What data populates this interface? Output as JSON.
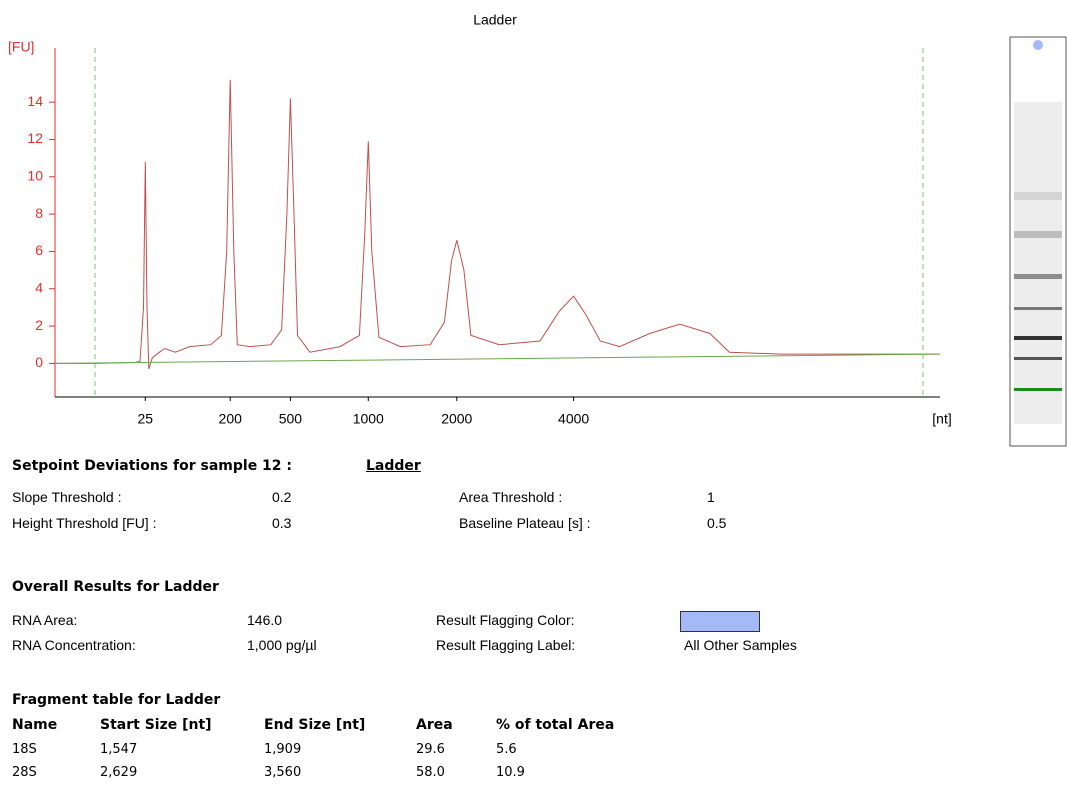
{
  "chart_data": {
    "type": "line",
    "title": "Ladder",
    "y_label": "[FU]",
    "x_label": "[nt]",
    "xlim": [
      19,
      69
    ],
    "ylim": [
      -1.8,
      16.9
    ],
    "yticks": [
      0,
      2,
      4,
      6,
      8,
      10,
      12,
      14
    ],
    "xticks": [
      {
        "value": 24.1,
        "label": "25"
      },
      {
        "value": 28.9,
        "label": "200"
      },
      {
        "value": 32.3,
        "label": "500"
      },
      {
        "value": 36.7,
        "label": "1000"
      },
      {
        "value": 41.7,
        "label": "2000"
      },
      {
        "value": 48.3,
        "label": "4000"
      }
    ],
    "axis_color": "#e0312b",
    "series": [
      {
        "color": "#c0504d",
        "x": [
          19.0,
          21.3,
          23.5,
          23.8,
          24.0,
          24.1,
          24.2,
          24.3,
          24.5,
          24.9,
          25.2,
          25.8,
          26.6,
          27.8,
          28.4,
          28.7,
          28.9,
          29.1,
          29.3,
          30.0,
          31.2,
          31.8,
          32.1,
          32.3,
          32.5,
          32.7,
          33.4,
          35.1,
          36.2,
          36.5,
          36.7,
          36.9,
          37.3,
          38.5,
          40.2,
          41.0,
          41.4,
          41.7,
          42.1,
          42.5,
          44.1,
          46.4,
          47.5,
          48.3,
          49.0,
          49.8,
          50.9,
          52.6,
          54.3,
          56.0,
          57.1,
          60.0,
          64.5,
          69.0
        ],
        "values": [
          0,
          0,
          0.05,
          0.1,
          3,
          10.8,
          3,
          -0.3,
          0.3,
          0.6,
          0.8,
          0.6,
          0.9,
          1.0,
          1.5,
          6,
          15.2,
          6,
          1.0,
          0.9,
          1.0,
          1.8,
          8,
          14.2,
          8,
          1.5,
          0.6,
          0.9,
          1.5,
          7,
          11.9,
          6,
          1.4,
          0.9,
          1.0,
          2.2,
          5.5,
          6.6,
          5,
          1.5,
          1.0,
          1.2,
          2.8,
          3.6,
          2.6,
          1.2,
          0.9,
          1.6,
          2.1,
          1.6,
          0.6,
          0.5,
          0.5,
          0.5
        ]
      },
      {
        "color": "#6aa84f",
        "x": [
          19.0,
          69.0
        ],
        "values": [
          0,
          0.5
        ]
      }
    ]
  },
  "setpoints": {
    "heading": "Setpoint Deviations for sample 12  :",
    "sample": "Ladder",
    "rows": [
      [
        "Slope Threshold :",
        "0.2",
        "Area Threshold :",
        "1"
      ],
      [
        "Height Threshold [FU] :",
        "0.3",
        "Baseline Plateau [s] :",
        "0.5"
      ]
    ]
  },
  "overall": {
    "heading": "Overall Results for Ladder",
    "left": [
      {
        "label": "RNA Area:",
        "value": "146.0"
      },
      {
        "label": "RNA Concentration:",
        "value": "1,000 pg/µl"
      }
    ],
    "right": [
      {
        "label": "Result Flagging Color:",
        "color": "#a4b9f7"
      },
      {
        "label": "Result Flagging Label:",
        "value": "All Other Samples"
      }
    ]
  },
  "fragments": {
    "heading": "Fragment table for Ladder",
    "columns": [
      "Name",
      "Start Size [nt]",
      "End Size [nt]",
      "Area",
      "% of total Area"
    ],
    "rows": [
      [
        "18S",
        "1,547",
        "1,909",
        "29.6",
        "5.6"
      ],
      [
        "28S",
        "2,629",
        "3,560",
        "58.0",
        "10.9"
      ]
    ]
  }
}
